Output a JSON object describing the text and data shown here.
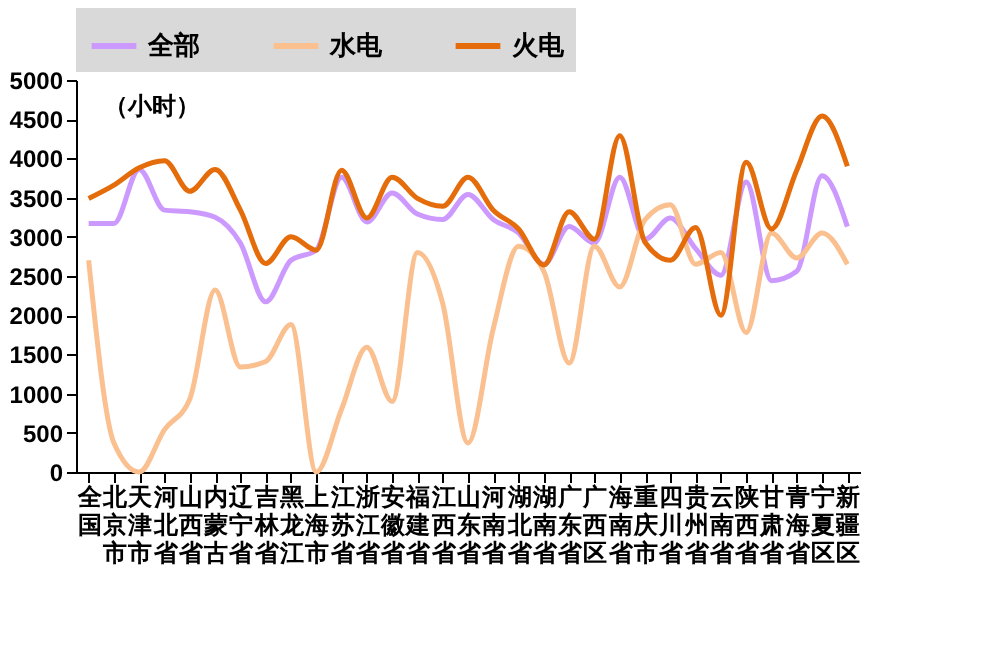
{
  "chart_data": {
    "type": "line",
    "annotations": [
      "（小时）"
    ],
    "categories": [
      "全国",
      "北京市",
      "天津市",
      "河北省",
      "山西省",
      "内蒙古",
      "辽宁省",
      "吉林省",
      "黑龙江",
      "上海市",
      "江苏省",
      "浙江省",
      "安徽省",
      "福建省",
      "江西省",
      "山东省",
      "河南省",
      "湖北省",
      "湖南省",
      "广东省",
      "广西区",
      "海南省",
      "重庆市",
      "四川省",
      "贵州省",
      "云南省",
      "陕西省",
      "甘肃省",
      "青海省",
      "宁夏区",
      "新疆区"
    ],
    "series": [
      {
        "name": "全部",
        "color": "#cc99ff",
        "values": [
          3170,
          3170,
          3860,
          3340,
          3320,
          3250,
          2920,
          2170,
          2700,
          2830,
          3760,
          3190,
          3560,
          3290,
          3220,
          3540,
          3220,
          3050,
          2650,
          3130,
          2920,
          3760,
          2970,
          3240,
          2850,
          2510,
          3700,
          2440,
          2560,
          3780,
          3130
        ]
      },
      {
        "name": "水电",
        "color": "#fac090",
        "values": [
          2700,
          370,
          0,
          540,
          930,
          2320,
          1340,
          1410,
          1880,
          0,
          800,
          1590,
          900,
          2800,
          2150,
          370,
          1830,
          2880,
          2560,
          1390,
          2880,
          2360,
          3220,
          3410,
          2650,
          2800,
          1780,
          3050,
          2730,
          3050,
          2650
        ]
      },
      {
        "name": "火电",
        "color": "#e46c0a",
        "values": [
          3490,
          3660,
          3880,
          3970,
          3580,
          3860,
          3340,
          2660,
          3000,
          2830,
          3850,
          3240,
          3760,
          3490,
          3390,
          3760,
          3340,
          3100,
          2640,
          3320,
          2970,
          4290,
          2930,
          2700,
          3120,
          2000,
          3950,
          3100,
          3850,
          4540,
          3900
        ]
      }
    ],
    "ylim": [
      0,
      5000
    ],
    "yticks": [
      0,
      500,
      1000,
      1500,
      2000,
      2500,
      3000,
      3500,
      4000,
      4500,
      5000
    ],
    "grid": false,
    "legend": "top",
    "line_style": "solid"
  }
}
